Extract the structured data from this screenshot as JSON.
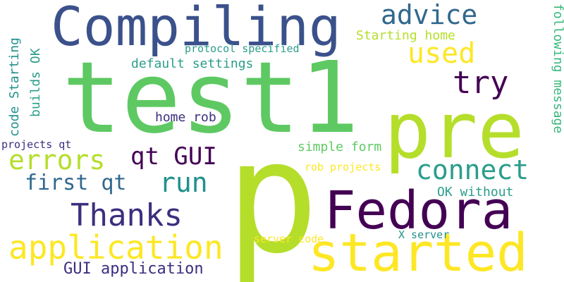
{
  "colors": {
    "background": "#ffffff",
    "dark_purple": "#440154",
    "indigo": "#3b2f7f",
    "navy_blue": "#3b518b",
    "slate_blue": "#31688e",
    "teal": "#21908c",
    "teal_green": "#2a9d8a",
    "green": "#35b779",
    "light_green": "#5ec962",
    "lime": "#b5de2b",
    "yellow": "#fde725"
  },
  "words": {
    "test1": "test1",
    "p": "p",
    "pre": "pre",
    "compiling": "Compiling",
    "fedora": "Fedora",
    "started": "started",
    "application": "application",
    "thanks": "Thanks",
    "advice": "advice",
    "used": "used",
    "try": "try",
    "connect": "connect",
    "errors": "errors",
    "qt_gui": "qt GUI",
    "first_qt": "first qt",
    "run": "run",
    "gui_application": "GUI application",
    "starting_home": "Starting home",
    "protocol_specified": "protocol specified",
    "default_settings": "default settings",
    "home_rob": "home rob",
    "simple_form": "simple form",
    "rob_projects": "rob projects",
    "ok_without": "OK without",
    "x_server": "X server",
    "server_code": "server code",
    "projects_qt": "projects qt",
    "code_starting": "code Starting",
    "builds_ok": "builds OK",
    "following_message": "following message"
  }
}
